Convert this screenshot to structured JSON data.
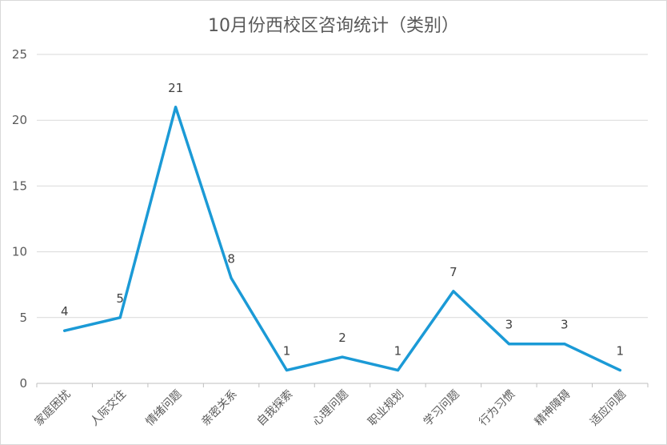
{
  "chart_data": {
    "type": "line",
    "title": "10月份西校区咨询统计（类别）",
    "categories": [
      "家庭困扰",
      "人际交往",
      "情绪问题",
      "亲密关系",
      "自我探索",
      "心理问题",
      "职业规划",
      "学习问题",
      "行为习惯",
      "精神障碍",
      "适应问题"
    ],
    "values": [
      4,
      5,
      21,
      8,
      1,
      2,
      1,
      7,
      3,
      3,
      1
    ],
    "ylim": [
      0,
      25
    ],
    "yticks": [
      0,
      5,
      10,
      15,
      20,
      25
    ],
    "grid": true,
    "legend": "none",
    "colors": {
      "line": "#1b9ad6",
      "grid": "#d9d9d9",
      "axis": "#bfbfbf"
    }
  }
}
